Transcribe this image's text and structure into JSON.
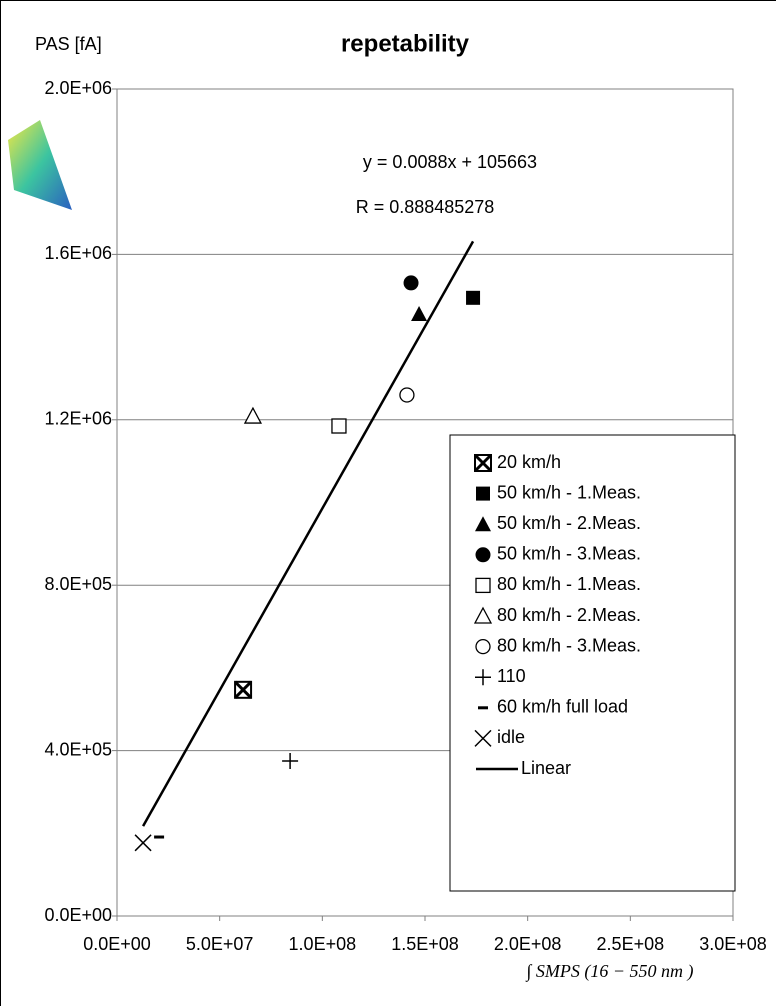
{
  "chart_data": {
    "type": "scatter",
    "title": "repetability",
    "y_label": "PAS [fA]",
    "x_label": "∫ SMPS  (16 − 550 nm )",
    "annotations": [
      "y = 0.0088x + 105663",
      "R = 0.888485278"
    ],
    "xlim": [
      0,
      300000000
    ],
    "ylim": [
      0,
      2000000
    ],
    "xticks": [
      {
        "value": 0,
        "label": "0.0E+00"
      },
      {
        "value": 50000000,
        "label": "5.0E+07"
      },
      {
        "value": 100000000,
        "label": "1.0E+08"
      },
      {
        "value": 150000000,
        "label": "1.5E+08"
      },
      {
        "value": 200000000,
        "label": "2.0E+08"
      },
      {
        "value": 250000000,
        "label": "2.5E+08"
      },
      {
        "value": 300000000,
        "label": "3.0E+08"
      }
    ],
    "yticks": [
      {
        "value": 0,
        "label": "0.0E+00"
      },
      {
        "value": 400000,
        "label": "4.0E+05"
      },
      {
        "value": 800000,
        "label": "8.0E+05"
      },
      {
        "value": 1200000,
        "label": "1.2E+06"
      },
      {
        "value": 1600000,
        "label": "1.6E+06"
      },
      {
        "value": 2000000,
        "label": "2.0E+06"
      }
    ],
    "grid": true,
    "legend": "lower right",
    "series": [
      {
        "name": "20 km/h",
        "marker": "xsquare",
        "color": "#000000",
        "x": [
          61400000
        ],
        "values": [
          547000
        ]
      },
      {
        "name": "50 km/h  - 1.Meas.",
        "marker": "square",
        "color": "#000000",
        "x": [
          173400000
        ],
        "values": [
          1495000
        ]
      },
      {
        "name": "50 km/h  - 2.Meas.",
        "marker": "triangle",
        "color": "#000000",
        "x": [
          147100000
        ],
        "values": [
          1456000
        ]
      },
      {
        "name": "50 km/h  - 3.Meas.",
        "marker": "circle",
        "color": "#000000",
        "x": [
          143200000
        ],
        "values": [
          1531000
        ]
      },
      {
        "name": "80 km/h  - 1.Meas.",
        "marker": "open-square",
        "color": "#000000",
        "x": [
          108100000
        ],
        "values": [
          1185000
        ]
      },
      {
        "name": "80 km/h  - 2.Meas.",
        "marker": "open-triangle",
        "color": "#000000",
        "x": [
          66200000
        ],
        "values": [
          1209000
        ]
      },
      {
        "name": "80 km/h  - 3.Meas.",
        "marker": "open-circle",
        "color": "#000000",
        "x": [
          141200000
        ],
        "values": [
          1260000
        ]
      },
      {
        "name": "110",
        "marker": "plus",
        "color": "#000000",
        "x": [
          84300000
        ],
        "values": [
          375000
        ]
      },
      {
        "name": "60 km/h full load",
        "marker": "dash",
        "color": "#000000",
        "x": [
          20500000
        ],
        "values": [
          191000
        ]
      },
      {
        "name": "idle",
        "marker": "x",
        "color": "#000000",
        "x": [
          12700000
        ],
        "values": [
          177000
        ]
      },
      {
        "name": "Linear",
        "marker": "line",
        "color": "#000000",
        "x": [
          12700000,
          173400000
        ],
        "values": [
          217423,
          1631583
        ]
      }
    ]
  }
}
